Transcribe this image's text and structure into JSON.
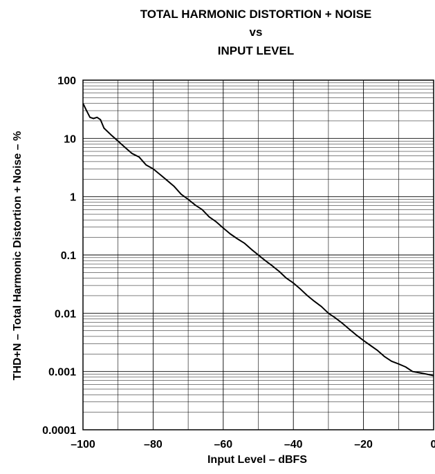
{
  "chart_data": {
    "type": "line",
    "title_lines": [
      "TOTAL HARMONIC DISTORTION + NOISE",
      "vs",
      "INPUT LEVEL"
    ],
    "xlabel": "Input Level – dBFS",
    "ylabel": "THD+N – Total Harmonic Distortion + Noise – %",
    "x_ticks": [
      "–100",
      "–80",
      "–60",
      "–40",
      "–20",
      "0"
    ],
    "y_ticks": [
      "0.0001",
      "0.001",
      "0.01",
      "0.1",
      "1",
      "10",
      "100"
    ],
    "xlim": [
      -100,
      0
    ],
    "ylim": [
      0.0001,
      100
    ],
    "y_scale": "log",
    "grid": true,
    "line_color": "#000000",
    "series": [
      {
        "x": [
          -100,
          -99,
          -98,
          -97,
          -96,
          -95,
          -94,
          -92,
          -90,
          -88,
          -86,
          -84,
          -82,
          -80,
          -78,
          -76,
          -74,
          -72,
          -70,
          -68,
          -66,
          -64,
          -62,
          -60,
          -58,
          -56,
          -54,
          -52,
          -50,
          -48,
          -46,
          -44,
          -42,
          -40,
          -38,
          -36,
          -34,
          -32,
          -30,
          -28,
          -26,
          -24,
          -22,
          -20,
          -18,
          -16,
          -14,
          -12,
          -10,
          -8,
          -6,
          -4,
          -2,
          0
        ],
        "y": [
          40,
          30,
          23,
          22,
          23,
          21,
          15,
          11.5,
          9,
          7,
          5.5,
          4.8,
          3.5,
          3.0,
          2.4,
          1.9,
          1.5,
          1.1,
          0.9,
          0.72,
          0.6,
          0.45,
          0.37,
          0.29,
          0.23,
          0.19,
          0.16,
          0.125,
          0.1,
          0.08,
          0.065,
          0.052,
          0.04,
          0.033,
          0.026,
          0.02,
          0.016,
          0.013,
          0.01,
          0.0083,
          0.0067,
          0.0053,
          0.0042,
          0.0034,
          0.0028,
          0.0023,
          0.0018,
          0.0015,
          0.00135,
          0.0012,
          0.001,
          0.00095,
          0.0009,
          0.00085
        ]
      }
    ]
  }
}
